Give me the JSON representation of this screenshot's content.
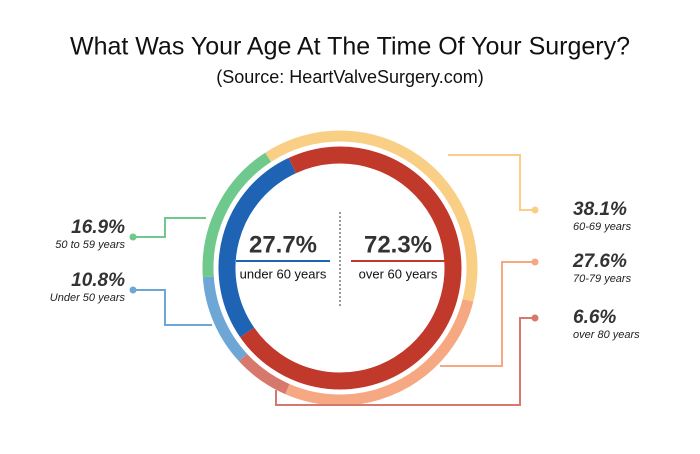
{
  "chart_data": {
    "type": "donut",
    "title": "What Was Your Age At The Time Of Your Surgery?",
    "subtitle": "(Source: HeartValveSurgery.com)",
    "outer": {
      "categories": [
        "60-69 years",
        "70-79 years",
        "over 80 years",
        "Under 50 years",
        "50 to 59 years"
      ],
      "values": [
        38.1,
        27.6,
        6.6,
        10.8,
        16.9
      ],
      "value_labels": [
        "38.1%",
        "27.6%",
        "6.6%",
        "10.8%",
        "16.9%"
      ],
      "colors": [
        "#f9cf86",
        "#f5a882",
        "#d7786c",
        "#6ea6d6",
        "#70c98c"
      ]
    },
    "inner": {
      "categories": [
        "over 60 years",
        "under 60 years"
      ],
      "values": [
        72.3,
        27.7
      ],
      "value_labels": [
        "72.3%",
        "27.7%"
      ],
      "colors": [
        "#c0392b",
        "#1f63b5"
      ]
    }
  }
}
